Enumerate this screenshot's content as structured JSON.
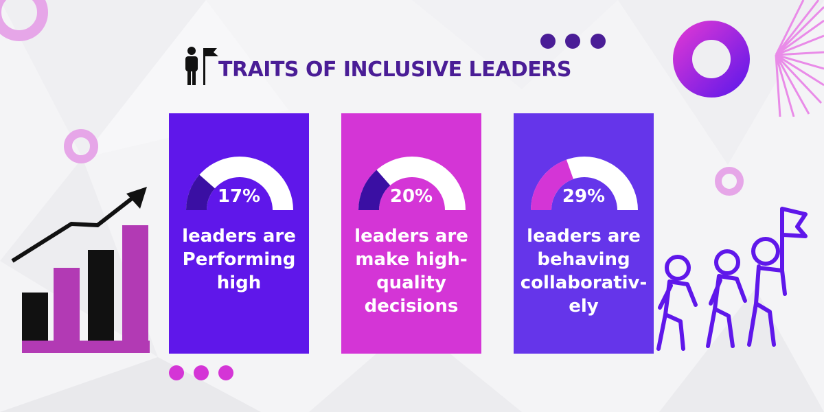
{
  "header": {
    "title": "TRAITS OF INCLUSIVE LEADERS",
    "icon": "leader-with-flag-icon"
  },
  "cards": [
    {
      "percent_label": "17%",
      "percent": 17,
      "description": "leaders are\nPerforming\nhigh",
      "background": "#5f17ea",
      "gauge_fill": "#3a0fa3"
    },
    {
      "percent_label": "20%",
      "percent": 20,
      "description": "leaders are\nmake high-\nquality\ndecisions",
      "background": "#d435d6",
      "gauge_fill": "#3a0fa3"
    },
    {
      "percent_label": "29%",
      "percent": 29,
      "description": "leaders are\nbehaving\ncollaborativ-\nely",
      "background": "#6535ea",
      "gauge_fill": "#d435d6"
    }
  ],
  "decor": {
    "left_graphic": "growth-bar-chart-icon",
    "right_graphic": "people-walking-with-flag-icon",
    "colors": {
      "purple_dark": "#4a1d96",
      "violet": "#5f17ea",
      "magenta": "#d435d6",
      "orchid": "#b23ab4",
      "lavender": "#e9c6f4"
    }
  }
}
